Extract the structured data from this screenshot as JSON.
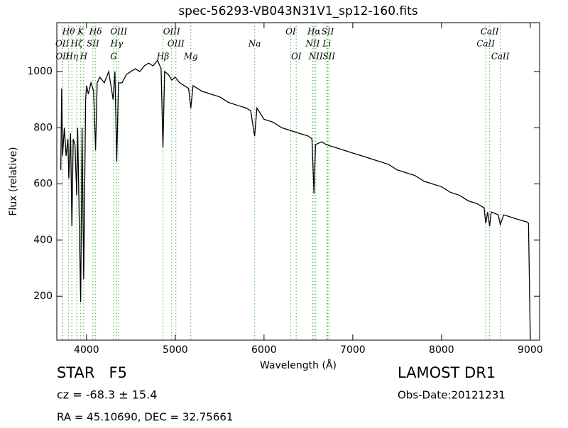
{
  "chart_data": {
    "type": "line",
    "title": "spec-56293-VB043N31V1_sp12-160.fits",
    "x_label": "Wavelength (Å)",
    "y_label": "Flux (relative)",
    "xlim": [
      3665,
      9105
    ],
    "ylim": [
      44,
      1174
    ],
    "xticks": [
      4000,
      5000,
      6000,
      7000,
      8000,
      9000
    ],
    "yticks": [
      200,
      400,
      600,
      800,
      1000
    ],
    "x": [
      3710,
      3720,
      3730,
      3750,
      3770,
      3790,
      3800,
      3820,
      3835,
      3850,
      3870,
      3889,
      3900,
      3934,
      3950,
      3968,
      3990,
      4000,
      4020,
      4050,
      4080,
      4102,
      4120,
      4150,
      4200,
      4250,
      4300,
      4320,
      4340,
      4360,
      4400,
      4450,
      4500,
      4550,
      4600,
      4650,
      4700,
      4750,
      4800,
      4840,
      4861,
      4880,
      4920,
      4960,
      5000,
      5050,
      5100,
      5150,
      5175,
      5200,
      5250,
      5300,
      5400,
      5500,
      5600,
      5700,
      5800,
      5850,
      5894,
      5920,
      6000,
      6100,
      6200,
      6300,
      6400,
      6500,
      6540,
      6563,
      6580,
      6650,
      6700,
      6800,
      6900,
      7000,
      7100,
      7200,
      7300,
      7400,
      7500,
      7600,
      7700,
      7800,
      7900,
      8000,
      8100,
      8200,
      8300,
      8400,
      8480,
      8498,
      8520,
      8542,
      8560,
      8640,
      8662,
      8700,
      8800,
      8900,
      8960,
      8980,
      9000
    ],
    "series": [
      {
        "color": "#000000",
        "values": [
          650,
          940,
          700,
          800,
          700,
          760,
          620,
          780,
          450,
          760,
          740,
          560,
          800,
          180,
          800,
          260,
          900,
          950,
          920,
          960,
          930,
          720,
          960,
          980,
          960,
          1000,
          900,
          1000,
          680,
          960,
          960,
          990,
          1000,
          1010,
          1000,
          1020,
          1030,
          1020,
          1040,
          1010,
          730,
          1000,
          990,
          970,
          980,
          960,
          950,
          940,
          870,
          950,
          940,
          930,
          920,
          910,
          890,
          880,
          870,
          860,
          770,
          870,
          830,
          820,
          800,
          790,
          780,
          770,
          760,
          565,
          740,
          750,
          740,
          730,
          720,
          710,
          700,
          690,
          680,
          670,
          650,
          640,
          630,
          610,
          600,
          590,
          570,
          560,
          540,
          530,
          515,
          460,
          500,
          450,
          500,
          490,
          455,
          490,
          480,
          470,
          465,
          460,
          50
        ]
      }
    ],
    "spectral_line_color": "#5fbf5f",
    "spectral_lines": [
      {
        "label": "OII",
        "wavelength": 3726
      },
      {
        "label": "OII",
        "wavelength": 3729
      },
      {
        "label": "Hθ",
        "wavelength": 3798
      },
      {
        "label": "Hη",
        "wavelength": 3835
      },
      {
        "label": "Hζ",
        "wavelength": 3889
      },
      {
        "label": "K",
        "wavelength": 3934
      },
      {
        "label": "H",
        "wavelength": 3968
      },
      {
        "label": "SII",
        "wavelength": 4072
      },
      {
        "label": "Hδ",
        "wavelength": 4102
      },
      {
        "label": "G",
        "wavelength": 4305
      },
      {
        "label": "Hγ",
        "wavelength": 4340
      },
      {
        "label": "OIII",
        "wavelength": 4363
      },
      {
        "label": "Hβ",
        "wavelength": 4861
      },
      {
        "label": "OIII",
        "wavelength": 4959
      },
      {
        "label": "OIII",
        "wavelength": 5007
      },
      {
        "label": "Mg",
        "wavelength": 5175
      },
      {
        "label": "Na",
        "wavelength": 5894
      },
      {
        "label": "OI",
        "wavelength": 6300
      },
      {
        "label": "OI",
        "wavelength": 6363
      },
      {
        "label": "NII",
        "wavelength": 6548
      },
      {
        "label": "Hα",
        "wavelength": 6563
      },
      {
        "label": "NII",
        "wavelength": 6583
      },
      {
        "label": "Li",
        "wavelength": 6707
      },
      {
        "label": "SII",
        "wavelength": 6717
      },
      {
        "label": "SII",
        "wavelength": 6731
      },
      {
        "label": "CaII",
        "wavelength": 8498
      },
      {
        "label": "CaII",
        "wavelength": 8542
      },
      {
        "label": "CaII",
        "wavelength": 8662
      }
    ],
    "annotations": {
      "class": "STAR   F5",
      "redshift": "cz = -68.3 ± 15.4",
      "coords": "RA = 45.10690, DEC = 32.75661",
      "survey": "LAMOST DR1",
      "obs_date": "Obs-Date:20121231"
    }
  }
}
